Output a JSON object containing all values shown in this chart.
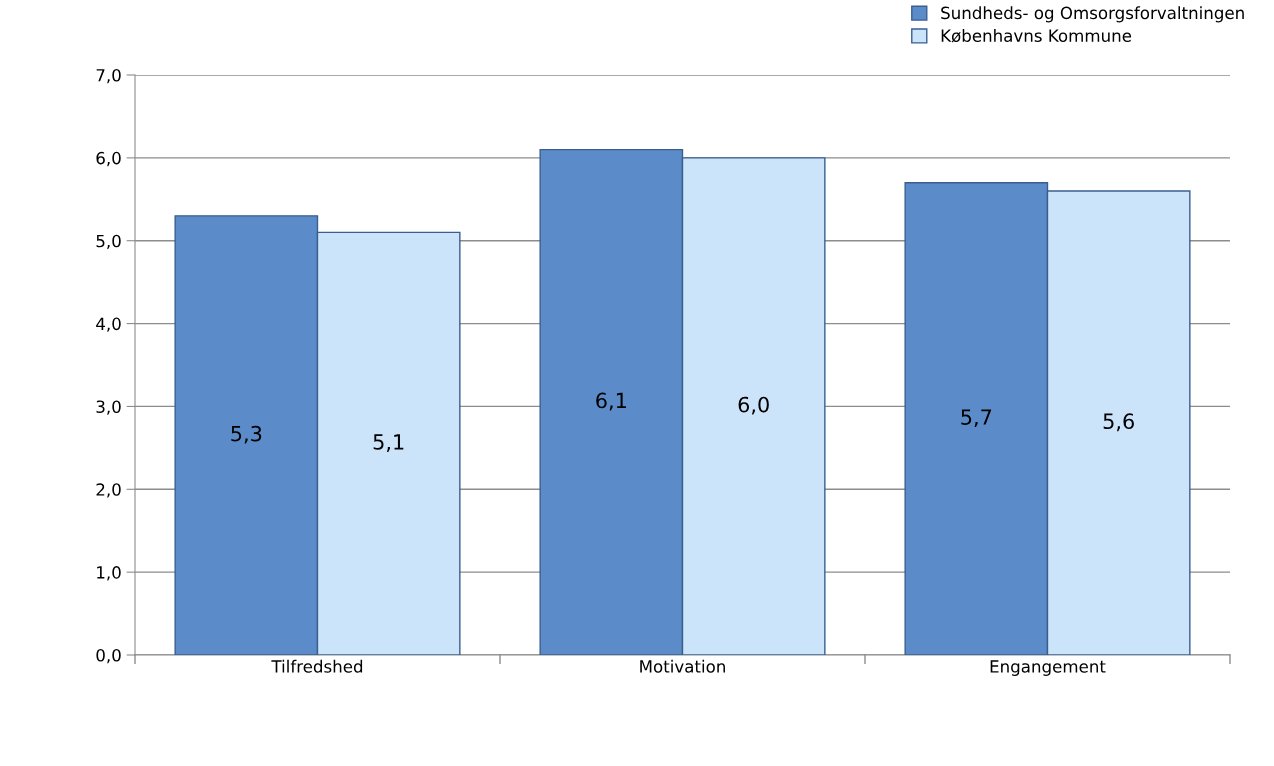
{
  "chart_data": {
    "type": "bar",
    "categories": [
      "Tilfredshed",
      "Motivation",
      "Engangement"
    ],
    "series": [
      {
        "name": "Sundheds- og Omsorgsforvaltningen",
        "color": "#5b8cc9",
        "values": [
          5.3,
          6.1,
          5.7
        ],
        "value_labels": [
          "5,3",
          "6,1",
          "5,7"
        ]
      },
      {
        "name": "Københavns Kommune",
        "color": "#cce4fa",
        "values": [
          5.1,
          6.0,
          5.6
        ],
        "value_labels": [
          "5,1",
          "6,0",
          "5,6"
        ]
      }
    ],
    "ylim": [
      0,
      7
    ],
    "yticks": [
      {
        "value": 0,
        "label": "0,0"
      },
      {
        "value": 1,
        "label": "1,0"
      },
      {
        "value": 2,
        "label": "2,0"
      },
      {
        "value": 3,
        "label": "3,0"
      },
      {
        "value": 4,
        "label": "4,0"
      },
      {
        "value": 5,
        "label": "5,0"
      },
      {
        "value": 6,
        "label": "6,0"
      },
      {
        "value": 7,
        "label": "7,0"
      }
    ],
    "grid": "y",
    "legend": "top right"
  }
}
